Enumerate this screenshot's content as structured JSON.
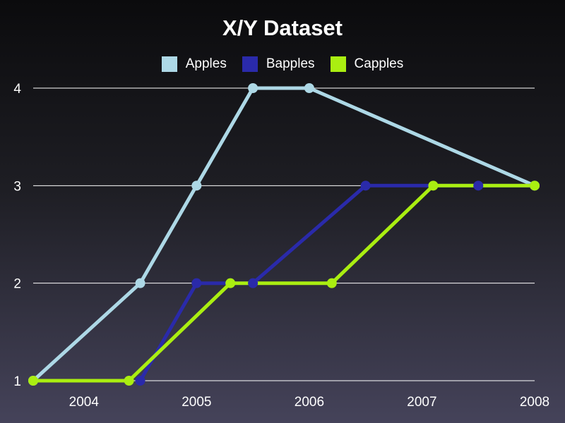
{
  "chart_data": {
    "type": "line",
    "title": "X/Y Dataset",
    "xlabel": "",
    "ylabel": "",
    "xlim": [
      2003.55,
      2008.0
    ],
    "ylim": [
      1,
      4
    ],
    "x_ticks": [
      "2004",
      "2005",
      "2006",
      "2007",
      "2008"
    ],
    "y_ticks": [
      "1",
      "2",
      "3",
      "4"
    ],
    "grid": "horizontal",
    "legend_position": "top",
    "series": [
      {
        "name": "Apples",
        "color": "#add8e6",
        "points": [
          {
            "x": 2003.55,
            "y": 1
          },
          {
            "x": 2004.5,
            "y": 2
          },
          {
            "x": 2005.0,
            "y": 3
          },
          {
            "x": 2005.5,
            "y": 4
          },
          {
            "x": 2006.0,
            "y": 4
          },
          {
            "x": 2008.0,
            "y": 3
          }
        ]
      },
      {
        "name": "Bapples",
        "color": "#2a2aaa",
        "points": [
          {
            "x": 2004.5,
            "y": 1
          },
          {
            "x": 2005.0,
            "y": 2
          },
          {
            "x": 2005.5,
            "y": 2
          },
          {
            "x": 2006.5,
            "y": 3
          },
          {
            "x": 2007.5,
            "y": 3
          },
          {
            "x": 2008.0,
            "y": 3
          }
        ]
      },
      {
        "name": "Capples",
        "color": "#aaee11",
        "points": [
          {
            "x": 2003.55,
            "y": 1
          },
          {
            "x": 2004.4,
            "y": 1
          },
          {
            "x": 2005.3,
            "y": 2
          },
          {
            "x": 2006.2,
            "y": 2
          },
          {
            "x": 2007.1,
            "y": 3
          },
          {
            "x": 2008.0,
            "y": 3
          }
        ]
      }
    ]
  },
  "colors": {
    "gridline": "#ffffff",
    "text": "#ffffff"
  }
}
